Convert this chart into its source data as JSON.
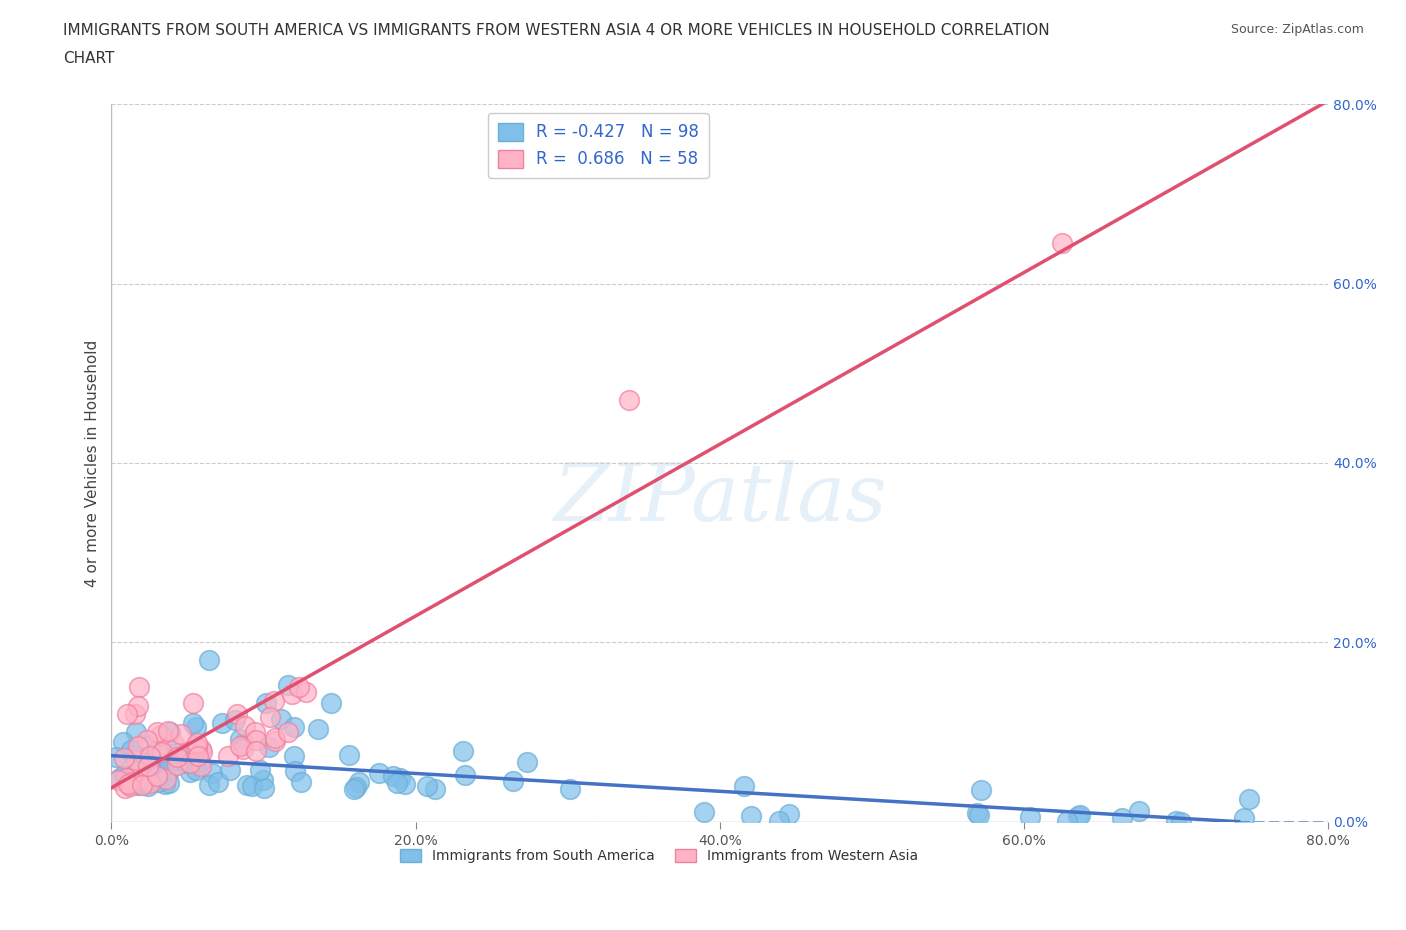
{
  "title_line1": "IMMIGRANTS FROM SOUTH AMERICA VS IMMIGRANTS FROM WESTERN ASIA 4 OR MORE VEHICLES IN HOUSEHOLD CORRELATION",
  "title_line2": "CHART",
  "source": "Source: ZipAtlas.com",
  "ylabel": "4 or more Vehicles in Household",
  "xlim": [
    0.0,
    0.8
  ],
  "ylim": [
    0.0,
    0.8
  ],
  "xticks": [
    0.0,
    0.2,
    0.4,
    0.6,
    0.8
  ],
  "yticks": [
    0.0,
    0.2,
    0.4,
    0.6,
    0.8
  ],
  "xticklabels": [
    "0.0%",
    "20.0%",
    "40.0%",
    "60.0%",
    "80.0%"
  ],
  "right_yticklabels": [
    "0.0%",
    "20.0%",
    "40.0%",
    "60.0%",
    "80.0%"
  ],
  "color_blue": "#7fbfea",
  "color_blue_edge": "#6baed6",
  "color_pink": "#ffb3c6",
  "color_pink_edge": "#f080a0",
  "color_blue_line": "#4472c4",
  "color_pink_line": "#e05070",
  "legend_text_color": "#3366cc",
  "R_blue": -0.427,
  "N_blue": 98,
  "R_pink": 0.686,
  "N_pink": 58,
  "watermark": "ZIPatlas",
  "grid_color": "#cccccc",
  "background_color": "#ffffff",
  "title_fontsize": 11,
  "axis_label_fontsize": 11,
  "tick_fontsize": 10,
  "legend_fontsize": 12
}
